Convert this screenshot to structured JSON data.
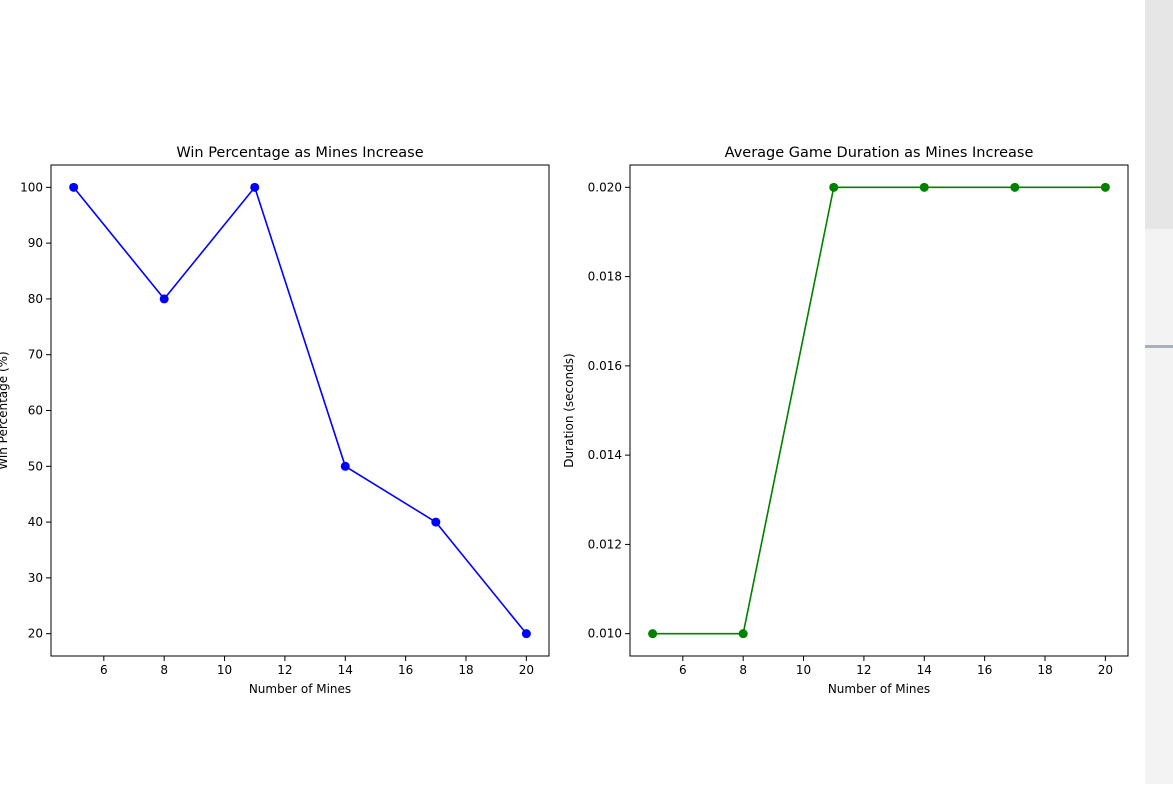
{
  "chart_data": [
    {
      "type": "line",
      "title": "Win Percentage as Mines Increase",
      "xlabel": "Number of Mines",
      "ylabel": "Win Percentage (%)",
      "x": [
        5,
        8,
        11,
        14,
        17,
        20
      ],
      "series": [
        {
          "values": [
            100,
            80,
            100,
            50,
            40,
            20
          ],
          "color": "#0000ff",
          "marker": "circle"
        }
      ],
      "xlim": [
        4.25,
        20.75
      ],
      "ylim": [
        16,
        104
      ],
      "xticks": [
        6,
        8,
        10,
        12,
        14,
        16,
        18,
        20
      ],
      "yticks": [
        20,
        30,
        40,
        50,
        60,
        70,
        80,
        90,
        100
      ],
      "ytick_labels": [
        "20",
        "30",
        "40",
        "50",
        "60",
        "70",
        "80",
        "90",
        "100"
      ],
      "grid": false
    },
    {
      "type": "line",
      "title": "Average Game Duration as Mines Increase",
      "xlabel": "Number of Mines",
      "ylabel": "Duration (seconds)",
      "x": [
        5,
        8,
        11,
        14,
        17,
        20
      ],
      "series": [
        {
          "values": [
            0.01,
            0.01,
            0.02,
            0.02,
            0.02,
            0.02
          ],
          "color": "#008000",
          "marker": "circle"
        }
      ],
      "xlim": [
        4.25,
        20.75
      ],
      "ylim": [
        0.0095,
        0.0205
      ],
      "xticks": [
        6,
        8,
        10,
        12,
        14,
        16,
        18,
        20
      ],
      "yticks": [
        0.01,
        0.012,
        0.014,
        0.016,
        0.018,
        0.02
      ],
      "ytick_labels": [
        "0.010",
        "0.012",
        "0.014",
        "0.016",
        "0.018",
        "0.020"
      ],
      "grid": false
    }
  ]
}
